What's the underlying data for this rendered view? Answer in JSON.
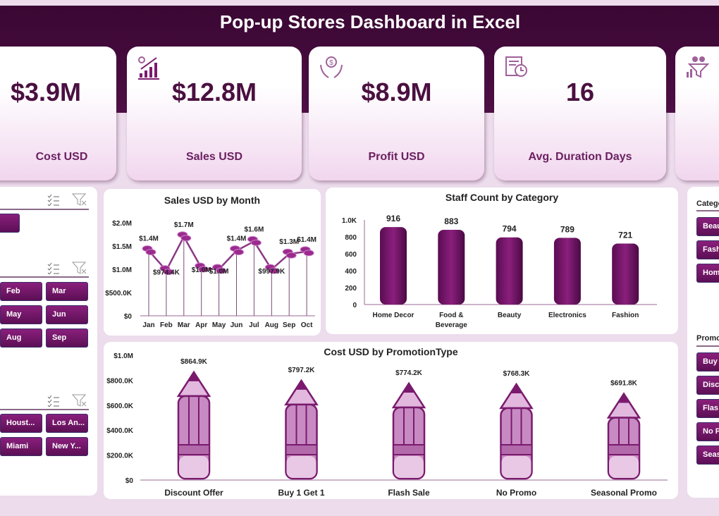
{
  "header": {
    "title": "Pop-up Stores Dashboard in Excel"
  },
  "colors": {
    "band": "#3d0a35",
    "accent": "#7a1a6e",
    "button": "#6e1565"
  },
  "kpis": [
    {
      "value": "$3.9M",
      "label": "Cost USD",
      "icon": ""
    },
    {
      "value": "$12.8M",
      "label": "Sales USD",
      "icon": "growth-chart-icon"
    },
    {
      "value": "$8.9M",
      "label": "Profit USD",
      "icon": "money-hands-icon"
    },
    {
      "value": "16",
      "label": "Avg. Duration Days",
      "icon": "schedule-handshake-icon"
    },
    {
      "value": "",
      "label": "",
      "icon": "team-funnel-icon"
    }
  ],
  "left_slicers": {
    "s1": {
      "buttons": [
        ""
      ]
    },
    "s2": {
      "buttons": [
        "Feb",
        "Mar",
        "May",
        "Jun",
        "Aug",
        "Sep"
      ]
    },
    "s3": {
      "buttons": [
        "Houst...",
        "Los An...",
        "Miami",
        "New Y..."
      ]
    }
  },
  "right_slicers": {
    "category": {
      "header": "Catego",
      "buttons": [
        "Beau",
        "Fash",
        "Hom"
      ]
    },
    "promo": {
      "header": "Promo",
      "buttons": [
        "Buy",
        "Disc",
        "Flas",
        "No P",
        "Seas"
      ]
    }
  },
  "chart_data": [
    {
      "type": "line",
      "title": "Sales USD by Month",
      "categories": [
        "Jan",
        "Feb",
        "Mar",
        "Apr",
        "May",
        "Jun",
        "Jul",
        "Aug",
        "Sep",
        "Oct"
      ],
      "values": [
        1400000,
        974400,
        1700000,
        1030000,
        1000000,
        1400000,
        1600000,
        997900,
        1330000,
        1380000
      ],
      "labels": [
        "$1.4M",
        "$974.4K",
        "$1.7M",
        "$1.0M",
        "$1.0M",
        "$1.4M",
        "$1.6M",
        "$997.9K",
        "$1.3M",
        "$1.4M"
      ],
      "yticks": [
        "$0",
        "$500.0K",
        "$1.0M",
        "$1.5M",
        "$2.0M"
      ],
      "ylim": [
        0,
        2000000
      ]
    },
    {
      "type": "bar",
      "title": "Staff Count by Category",
      "categories": [
        "Home Decor",
        "Food & Beverage",
        "Beauty",
        "Electronics",
        "Fashion"
      ],
      "values": [
        916,
        883,
        794,
        789,
        721
      ],
      "yticks": [
        "0",
        "200",
        "400",
        "600",
        "800",
        "1.0K"
      ],
      "ylim": [
        0,
        1000
      ]
    },
    {
      "type": "bar",
      "title": "Cost USD by PromotionType",
      "categories": [
        "Discount Offer",
        "Buy 1 Get 1",
        "Flash Sale",
        "No Promo",
        "Seasonal Promo"
      ],
      "values": [
        864900,
        797200,
        774200,
        768300,
        691800
      ],
      "labels": [
        "$864.9K",
        "$797.2K",
        "$774.2K",
        "$768.3K",
        "$691.8K"
      ],
      "yticks": [
        "$0",
        "$200.0K",
        "$400.0K",
        "$600.0K",
        "$800.0K",
        "$1.0M"
      ],
      "ylim": [
        0,
        1000000
      ]
    }
  ]
}
